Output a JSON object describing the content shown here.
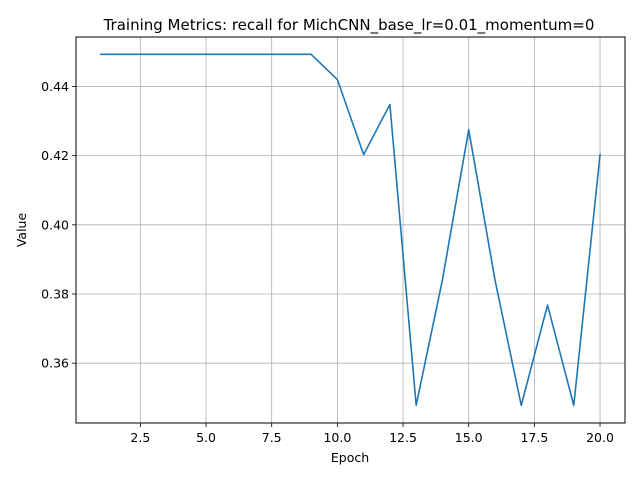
{
  "chart_data": {
    "type": "line",
    "title": "Training Metrics: recall for MichCNN_base_lr=0.01_momentum=0",
    "xlabel": "Epoch",
    "ylabel": "Value",
    "xlim": [
      0.05,
      20.95
    ],
    "ylim": [
      0.3427,
      0.4543
    ],
    "xticks": [
      2.5,
      5.0,
      7.5,
      10.0,
      12.5,
      15.0,
      17.5,
      20.0
    ],
    "xtick_labels": [
      "2.5",
      "5.0",
      "7.5",
      "10.0",
      "12.5",
      "15.0",
      "17.5",
      "20.0"
    ],
    "yticks": [
      0.36,
      0.38,
      0.4,
      0.42,
      0.44
    ],
    "ytick_labels": [
      "0.36",
      "0.38",
      "0.40",
      "0.42",
      "0.44"
    ],
    "grid": true,
    "series": [
      {
        "color": "#1f77b4",
        "x": [
          1,
          2,
          3,
          4,
          5,
          6,
          7,
          8,
          9,
          10,
          11,
          12,
          13,
          14,
          15,
          16,
          17,
          18,
          19,
          20
        ],
        "y": [
          0.4493,
          0.4493,
          0.4493,
          0.4493,
          0.4493,
          0.4493,
          0.4493,
          0.4493,
          0.4493,
          0.442,
          0.4203,
          0.4348,
          0.3478,
          0.3841,
          0.4275,
          0.3841,
          0.3478,
          0.3768,
          0.3478,
          0.4203
        ]
      }
    ]
  }
}
